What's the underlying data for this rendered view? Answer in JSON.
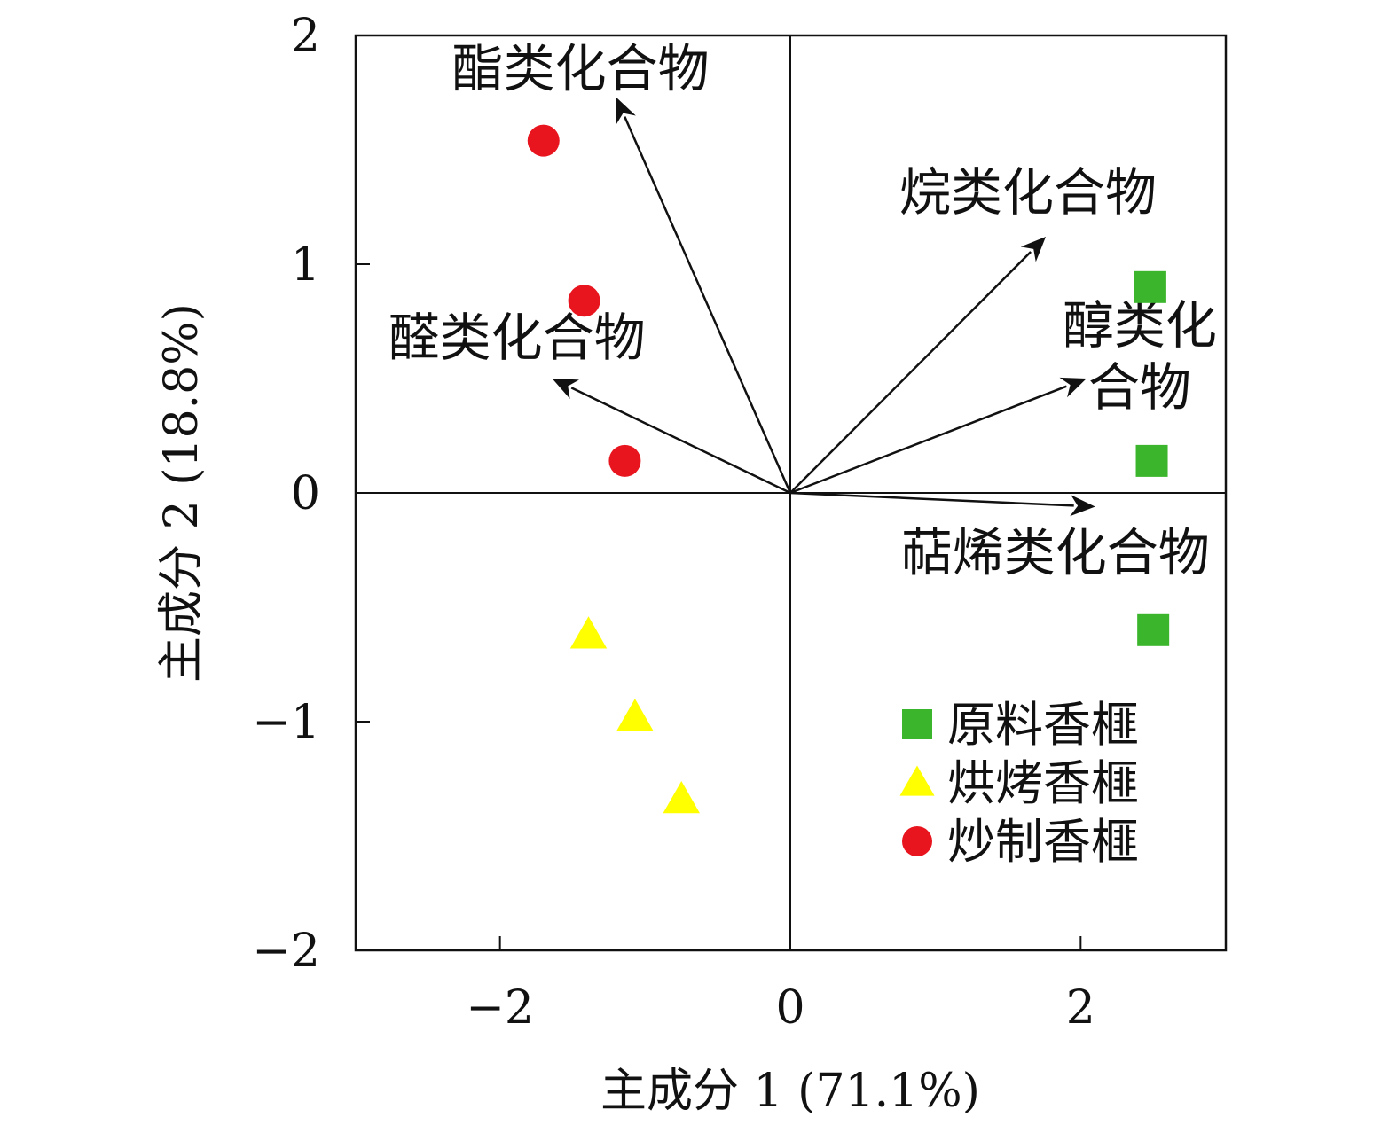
{
  "chart_data": {
    "type": "scatter",
    "subtype": "pca-biplot",
    "xlabel": "主成分 1 (71.1%)",
    "ylabel": "主成分 2 (18.8%)",
    "xlim": [
      -3,
      3
    ],
    "ylim": [
      -2,
      2
    ],
    "xticks": [
      -2,
      0,
      2
    ],
    "yticks": [
      -2,
      -1,
      0,
      1,
      2
    ],
    "xtick_labels": [
      "−2",
      "0",
      "2"
    ],
    "ytick_labels": [
      "−2",
      "−1",
      "0",
      "1",
      "2"
    ],
    "grid": false,
    "reference_lines": [
      0
    ],
    "legend_position": "bottom-right",
    "series": [
      {
        "name": "原料香榧",
        "marker": "square",
        "color": "#3bb52b",
        "points": [
          {
            "x": 2.48,
            "y": 0.9
          },
          {
            "x": 2.49,
            "y": 0.14
          },
          {
            "x": 2.5,
            "y": -0.6
          }
        ]
      },
      {
        "name": "烘烤香榧",
        "marker": "triangle",
        "color": "#ffff00",
        "points": [
          {
            "x": -1.39,
            "y": -0.62
          },
          {
            "x": -1.07,
            "y": -0.98
          },
          {
            "x": -0.75,
            "y": -1.34
          }
        ]
      },
      {
        "name": "炒制香榧",
        "marker": "circle",
        "color": "#e8141e",
        "points": [
          {
            "x": -1.7,
            "y": 1.54
          },
          {
            "x": -1.42,
            "y": 0.84
          },
          {
            "x": -1.14,
            "y": 0.14
          }
        ]
      }
    ],
    "loadings": [
      {
        "label": "酯类化合物",
        "x": -1.2,
        "y": 1.73
      },
      {
        "label": "烷类化合物",
        "x": 1.76,
        "y": 1.12
      },
      {
        "label": "醇类化合物",
        "x": 2.04,
        "y": 0.5
      },
      {
        "label": "醛类化合物",
        "x": -1.64,
        "y": 0.5
      },
      {
        "label": "萜烯类化合物",
        "x": 2.1,
        "y": -0.06
      }
    ],
    "loading_label_lines": [
      [
        "酯类化合物"
      ],
      [
        "烷类化合物"
      ],
      [
        "醇类化",
        "合物"
      ],
      [
        "醛类化合物"
      ],
      [
        "萜烯类化合物"
      ]
    ]
  }
}
